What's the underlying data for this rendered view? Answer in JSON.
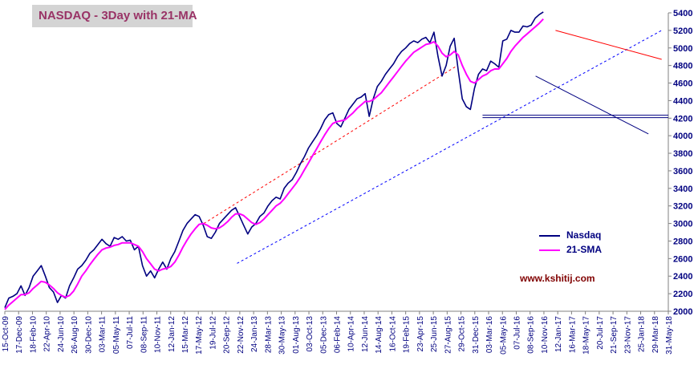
{
  "chart_data": {
    "type": "line",
    "title": "NASDAQ - 3Day with 21-MA",
    "xlabel": "",
    "ylabel": "",
    "ylim": [
      2000,
      5400
    ],
    "y_ticks": [
      2000,
      2200,
      2400,
      2600,
      2800,
      3000,
      3200,
      3400,
      3600,
      3800,
      4000,
      4200,
      4400,
      4600,
      4800,
      5000,
      5200,
      5400
    ],
    "x_tick_labels": [
      "15-Oct-09",
      "17-Dec-09",
      "18-Feb-10",
      "22-Apr-10",
      "24-Jun-10",
      "26-Aug-10",
      "30-Dec-10",
      "03-Mar-11",
      "05-May-11",
      "07-Jul-11",
      "08-Sep-11",
      "10-Nov-11",
      "12-Jan-12",
      "15-Mar-12",
      "17-May-12",
      "19-Jul-12",
      "20-Sep-12",
      "22-Nov-12",
      "24-Jan-13",
      "28-Mar-13",
      "30-May-13",
      "01-Aug-13",
      "03-Oct-13",
      "05-Dec-13",
      "06-Feb-14",
      "10-Apr-14",
      "12-Jun-14",
      "14-Aug-14",
      "16-Oct-14",
      "19-Feb-15",
      "23-Apr-15",
      "25-Jun-15",
      "27-Aug-15",
      "29-Oct-15",
      "31-Dec-15",
      "03-Mar-16",
      "05-May-16",
      "07-Jul-16",
      "08-Sep-16",
      "10-Nov-16",
      "12-Jan-17",
      "16-Mar-17",
      "18-May-17",
      "20-Jul-17",
      "21-Sep-17",
      "23-Nov-17",
      "25-Jan-18",
      "29-Mar-18",
      "31-May-18"
    ],
    "grid": false,
    "legend_position": "bottom-right",
    "series": [
      {
        "name": "Nasdaq",
        "color": "#000080",
        "values": [
          2040,
          2150,
          2170,
          2200,
          2290,
          2180,
          2270,
          2400,
          2460,
          2520,
          2400,
          2270,
          2220,
          2100,
          2180,
          2150,
          2290,
          2380,
          2480,
          2520,
          2580,
          2660,
          2700,
          2760,
          2820,
          2770,
          2740,
          2840,
          2820,
          2850,
          2800,
          2810,
          2700,
          2740,
          2520,
          2400,
          2460,
          2380,
          2480,
          2560,
          2480,
          2600,
          2680,
          2800,
          2920,
          3000,
          3050,
          3100,
          3080,
          2980,
          2850,
          2830,
          2900,
          3000,
          3050,
          3100,
          3150,
          3180,
          3080,
          2980,
          2880,
          2960,
          3000,
          3080,
          3120,
          3200,
          3260,
          3300,
          3280,
          3400,
          3460,
          3500,
          3580,
          3680,
          3760,
          3860,
          3930,
          4000,
          4080,
          4180,
          4240,
          4260,
          4140,
          4100,
          4200,
          4300,
          4360,
          4420,
          4440,
          4480,
          4220,
          4420,
          4560,
          4620,
          4700,
          4760,
          4820,
          4900,
          4960,
          5000,
          5050,
          5080,
          5060,
          5100,
          5120,
          5060,
          5180,
          4900,
          4680,
          4800,
          5020,
          5110,
          4740,
          4420,
          4330,
          4300,
          4540,
          4700,
          4760,
          4740,
          4850,
          4820,
          4780,
          5080,
          5100,
          5200,
          5180,
          5180,
          5250,
          5240,
          5260,
          5340,
          5380,
          5410
        ]
      },
      {
        "name": "21-SMA",
        "color": "#ff00ff",
        "values": [
          2020,
          2070,
          2110,
          2150,
          2190,
          2190,
          2210,
          2260,
          2300,
          2340,
          2330,
          2300,
          2260,
          2210,
          2180,
          2160,
          2180,
          2230,
          2310,
          2400,
          2460,
          2530,
          2590,
          2650,
          2700,
          2720,
          2730,
          2750,
          2760,
          2780,
          2780,
          2780,
          2760,
          2740,
          2680,
          2600,
          2540,
          2480,
          2460,
          2480,
          2490,
          2510,
          2560,
          2640,
          2730,
          2810,
          2880,
          2940,
          2990,
          3000,
          2980,
          2950,
          2940,
          2950,
          2980,
          3020,
          3070,
          3110,
          3110,
          3090,
          3050,
          3010,
          2990,
          3010,
          3050,
          3100,
          3150,
          3200,
          3230,
          3280,
          3340,
          3400,
          3460,
          3530,
          3610,
          3690,
          3770,
          3850,
          3930,
          4010,
          4080,
          4140,
          4160,
          4170,
          4180,
          4220,
          4260,
          4310,
          4350,
          4390,
          4390,
          4410,
          4450,
          4490,
          4550,
          4610,
          4670,
          4730,
          4790,
          4850,
          4900,
          4950,
          4980,
          5010,
          5040,
          5050,
          5070,
          5020,
          4940,
          4900,
          4920,
          4960,
          4920,
          4800,
          4700,
          4620,
          4600,
          4640,
          4680,
          4700,
          4740,
          4760,
          4760,
          4820,
          4880,
          4960,
          5020,
          5070,
          5120,
          5160,
          5200,
          5240,
          5280,
          5330
        ]
      }
    ],
    "annotations": [
      {
        "type": "trendline",
        "style": "dashed",
        "color": "#ff0000",
        "from": [
          0.3,
          3000
        ],
        "to": [
          0.68,
          4790
        ]
      },
      {
        "type": "trendline",
        "style": "dashed",
        "color": "#0000ff",
        "from": [
          0.35,
          2545
        ],
        "to": [
          0.99,
          5200
        ]
      },
      {
        "type": "trendline",
        "style": "solid",
        "color": "#ff0000",
        "from": [
          0.83,
          5200
        ],
        "to": [
          0.99,
          4870
        ]
      },
      {
        "type": "trendline",
        "style": "solid",
        "color": "#000080",
        "from": [
          0.8,
          4680
        ],
        "to": [
          0.97,
          4020
        ]
      },
      {
        "type": "hline",
        "style": "double",
        "color": "#000080",
        "y": 4220,
        "from": 0.72,
        "to": 1.0
      }
    ]
  },
  "watermark": "www.kshitij.com"
}
